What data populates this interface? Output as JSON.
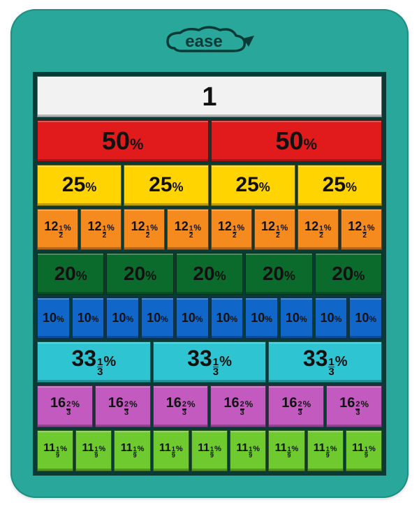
{
  "logo_text": "ease",
  "board": {
    "background_color": "#2aa79b",
    "border_radius": 36,
    "frame_color": "#0a3a36"
  },
  "rows": [
    {
      "count": 1,
      "color": "#f2f2f2",
      "main": "1",
      "fraction": null,
      "percent": false,
      "main_fs": 38,
      "frac_fs": 0,
      "pct_fs": 0
    },
    {
      "count": 2,
      "color": "#e11b1b",
      "main": "50",
      "fraction": null,
      "percent": true,
      "main_fs": 36,
      "frac_fs": 0,
      "pct_fs": 22
    },
    {
      "count": 4,
      "color": "#ffd400",
      "main": "25",
      "fraction": null,
      "percent": true,
      "main_fs": 30,
      "frac_fs": 0,
      "pct_fs": 18
    },
    {
      "count": 8,
      "color": "#f58a1f",
      "main": "12",
      "fraction": {
        "n": "1",
        "d": "2"
      },
      "percent": true,
      "main_fs": 18,
      "frac_fs": 10,
      "pct_fs": 12
    },
    {
      "count": 5,
      "color": "#0b6b2c",
      "main": "20",
      "fraction": null,
      "percent": true,
      "main_fs": 28,
      "frac_fs": 0,
      "pct_fs": 18
    },
    {
      "count": 10,
      "color": "#1067c9",
      "main": "10",
      "fraction": null,
      "percent": true,
      "main_fs": 18,
      "frac_fs": 0,
      "pct_fs": 12
    },
    {
      "count": 3,
      "color": "#2fc4d1",
      "main": "33",
      "fraction": {
        "n": "1",
        "d": "3"
      },
      "percent": true,
      "main_fs": 32,
      "frac_fs": 15,
      "pct_fs": 20
    },
    {
      "count": 6,
      "color": "#c35ac0",
      "main": "16",
      "fraction": {
        "n": "2",
        "d": "3"
      },
      "percent": true,
      "main_fs": 20,
      "frac_fs": 11,
      "pct_fs": 13
    },
    {
      "count": 9,
      "color": "#6fca30",
      "main": "11",
      "fraction": {
        "n": "1",
        "d": "9"
      },
      "percent": true,
      "main_fs": 16,
      "frac_fs": 9,
      "pct_fs": 11
    }
  ]
}
